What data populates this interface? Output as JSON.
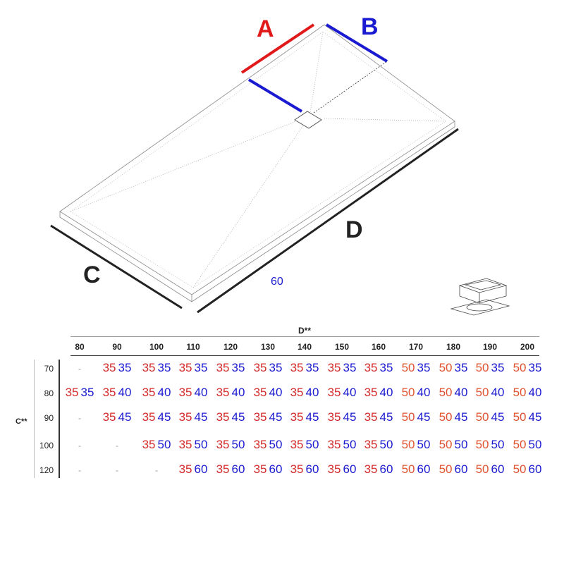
{
  "labels": {
    "a": "A",
    "b": "B",
    "c": "C",
    "d": "D",
    "width_note": "60"
  },
  "colors": {
    "a": "#e01a1a",
    "b": "#1a1ad0",
    "first_red": "#d42a2a",
    "first_orange": "#e0522e",
    "second": "#1a1ad0"
  },
  "table": {
    "col_title": "D**",
    "row_title": "C**",
    "columns": [
      "80",
      "90",
      "100",
      "110",
      "120",
      "130",
      "140",
      "150",
      "160",
      "170",
      "180",
      "190",
      "200"
    ],
    "rows": [
      {
        "label": "70",
        "cells": [
          null,
          [
            "35",
            "35"
          ],
          [
            "35",
            "35"
          ],
          [
            "35",
            "35"
          ],
          [
            "35",
            "35"
          ],
          [
            "35",
            "35"
          ],
          [
            "35",
            "35"
          ],
          [
            "35",
            "35"
          ],
          [
            "35",
            "35"
          ],
          [
            "50",
            "35"
          ],
          [
            "50",
            "35"
          ],
          [
            "50",
            "35"
          ],
          [
            "50",
            "35"
          ]
        ]
      },
      {
        "label": "80",
        "cells": [
          [
            "35",
            "35"
          ],
          [
            "35",
            "40"
          ],
          [
            "35",
            "40"
          ],
          [
            "35",
            "40"
          ],
          [
            "35",
            "40"
          ],
          [
            "35",
            "40"
          ],
          [
            "35",
            "40"
          ],
          [
            "35",
            "40"
          ],
          [
            "35",
            "40"
          ],
          [
            "50",
            "40"
          ],
          [
            "50",
            "40"
          ],
          [
            "50",
            "40"
          ],
          [
            "50",
            "40"
          ]
        ]
      },
      {
        "label": "90",
        "cells": [
          null,
          [
            "35",
            "45"
          ],
          [
            "35",
            "45"
          ],
          [
            "35",
            "45"
          ],
          [
            "35",
            "45"
          ],
          [
            "35",
            "45"
          ],
          [
            "35",
            "45"
          ],
          [
            "35",
            "45"
          ],
          [
            "35",
            "45"
          ],
          [
            "50",
            "45"
          ],
          [
            "50",
            "45"
          ],
          [
            "50",
            "45"
          ],
          [
            "50",
            "45"
          ]
        ]
      },
      {
        "label": "100",
        "cells": [
          null,
          null,
          [
            "35",
            "50"
          ],
          [
            "35",
            "50"
          ],
          [
            "35",
            "50"
          ],
          [
            "35",
            "50"
          ],
          [
            "35",
            "50"
          ],
          [
            "35",
            "50"
          ],
          [
            "35",
            "50"
          ],
          [
            "50",
            "50"
          ],
          [
            "50",
            "50"
          ],
          [
            "50",
            "50"
          ],
          [
            "50",
            "50"
          ]
        ]
      },
      {
        "label": "120",
        "cells": [
          null,
          null,
          null,
          [
            "35",
            "60"
          ],
          [
            "35",
            "60"
          ],
          [
            "35",
            "60"
          ],
          [
            "35",
            "60"
          ],
          [
            "35",
            "60"
          ],
          [
            "35",
            "60"
          ],
          [
            "50",
            "60"
          ],
          [
            "50",
            "60"
          ],
          [
            "50",
            "60"
          ],
          [
            "50",
            "60"
          ]
        ]
      }
    ],
    "empty_mark": "-"
  }
}
